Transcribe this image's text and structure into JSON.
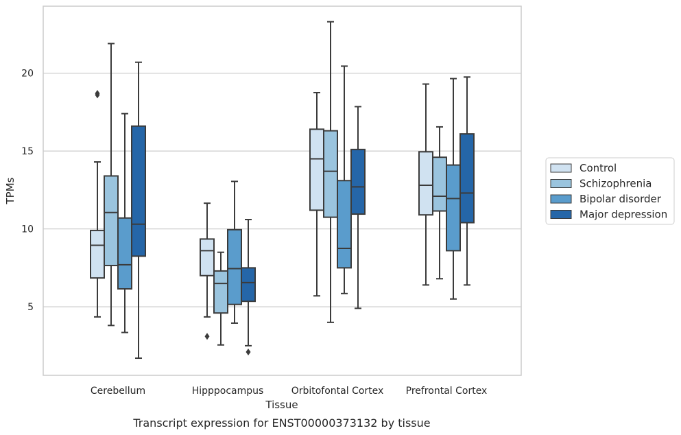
{
  "chart_data": {
    "type": "box",
    "xlabel": "Tissue",
    "ylabel": "TPMs",
    "caption": "Transcript expression for ENST00000373132 by tissue",
    "ylim": [
      0.6,
      24.3
    ],
    "yticks": [
      5,
      10,
      15,
      20
    ],
    "grid": "horizontal",
    "legend_position": "right",
    "categories": [
      "Cerebellum",
      "Hipppocampus",
      "Orbitofontal Cortex",
      "Prefrontal Cortex"
    ],
    "series": [
      {
        "name": "Control",
        "color": "#d0e2f1",
        "boxes": [
          {
            "whislo": 4.35,
            "q1": 6.85,
            "med": 8.95,
            "q3": 9.9,
            "whishi": 14.3,
            "fliers": [
              18.6,
              18.7
            ]
          },
          {
            "whislo": 4.35,
            "q1": 7.0,
            "med": 8.6,
            "q3": 9.35,
            "whishi": 11.65,
            "fliers": [
              3.1
            ]
          },
          {
            "whislo": 5.7,
            "q1": 11.2,
            "med": 14.5,
            "q3": 16.4,
            "whishi": 18.75,
            "fliers": []
          },
          {
            "whislo": 6.4,
            "q1": 10.9,
            "med": 12.8,
            "q3": 14.95,
            "whishi": 19.3,
            "fliers": []
          }
        ]
      },
      {
        "name": "Schizophrenia",
        "color": "#9ac4de",
        "boxes": [
          {
            "whislo": 3.8,
            "q1": 7.65,
            "med": 11.05,
            "q3": 13.4,
            "whishi": 21.9,
            "fliers": []
          },
          {
            "whislo": 2.55,
            "q1": 4.6,
            "med": 6.5,
            "q3": 7.3,
            "whishi": 8.5,
            "fliers": []
          },
          {
            "whislo": 4.0,
            "q1": 10.75,
            "med": 13.7,
            "q3": 16.3,
            "whishi": 23.3,
            "fliers": []
          },
          {
            "whislo": 6.8,
            "q1": 11.15,
            "med": 12.1,
            "q3": 14.6,
            "whishi": 16.55,
            "fliers": []
          }
        ]
      },
      {
        "name": "Bipolar disorder",
        "color": "#5a9ccc",
        "boxes": [
          {
            "whislo": 3.35,
            "q1": 6.15,
            "med": 7.7,
            "q3": 10.7,
            "whishi": 17.4,
            "fliers": []
          },
          {
            "whislo": 3.95,
            "q1": 5.15,
            "med": 7.45,
            "q3": 9.95,
            "whishi": 13.05,
            "fliers": []
          },
          {
            "whislo": 5.85,
            "q1": 7.5,
            "med": 8.75,
            "q3": 13.1,
            "whishi": 20.45,
            "fliers": []
          },
          {
            "whislo": 5.5,
            "q1": 8.6,
            "med": 11.95,
            "q3": 14.1,
            "whishi": 19.65,
            "fliers": []
          }
        ]
      },
      {
        "name": "Major depression",
        "color": "#2566a8",
        "boxes": [
          {
            "whislo": 1.7,
            "q1": 8.25,
            "med": 10.3,
            "q3": 16.6,
            "whishi": 20.7,
            "fliers": []
          },
          {
            "whislo": 2.5,
            "q1": 5.35,
            "med": 6.55,
            "q3": 7.5,
            "whishi": 10.6,
            "fliers": [
              2.1
            ]
          },
          {
            "whislo": 4.9,
            "q1": 10.95,
            "med": 12.7,
            "q3": 15.1,
            "whishi": 17.85,
            "fliers": []
          },
          {
            "whislo": 6.4,
            "q1": 10.4,
            "med": 12.3,
            "q3": 16.1,
            "whishi": 19.75,
            "fliers": []
          }
        ]
      }
    ]
  },
  "colors": {
    "grid": "#cccccc",
    "frame": "#cccccc",
    "box_edge": "#3b3b3b",
    "legend_edge": "#cccccc"
  }
}
